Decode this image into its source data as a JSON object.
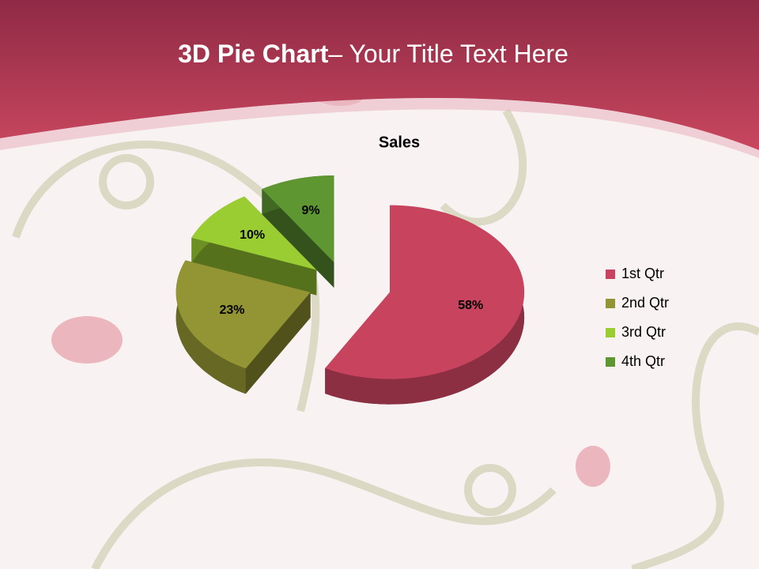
{
  "slide_title": {
    "bold": "3D Pie Chart",
    "rest": "– Your Title Text Here"
  },
  "chart_data": {
    "type": "pie",
    "title": "Sales",
    "categories": [
      "1st Qtr",
      "2nd Qtr",
      "3rd Qtr",
      "4th Qtr"
    ],
    "values": [
      58,
      23,
      10,
      9
    ],
    "value_labels": [
      "58%",
      "23%",
      "10%",
      "9%"
    ],
    "colors": [
      "#c8435e",
      "#939433",
      "#9acd32",
      "#5e9632"
    ],
    "legend": "right"
  }
}
